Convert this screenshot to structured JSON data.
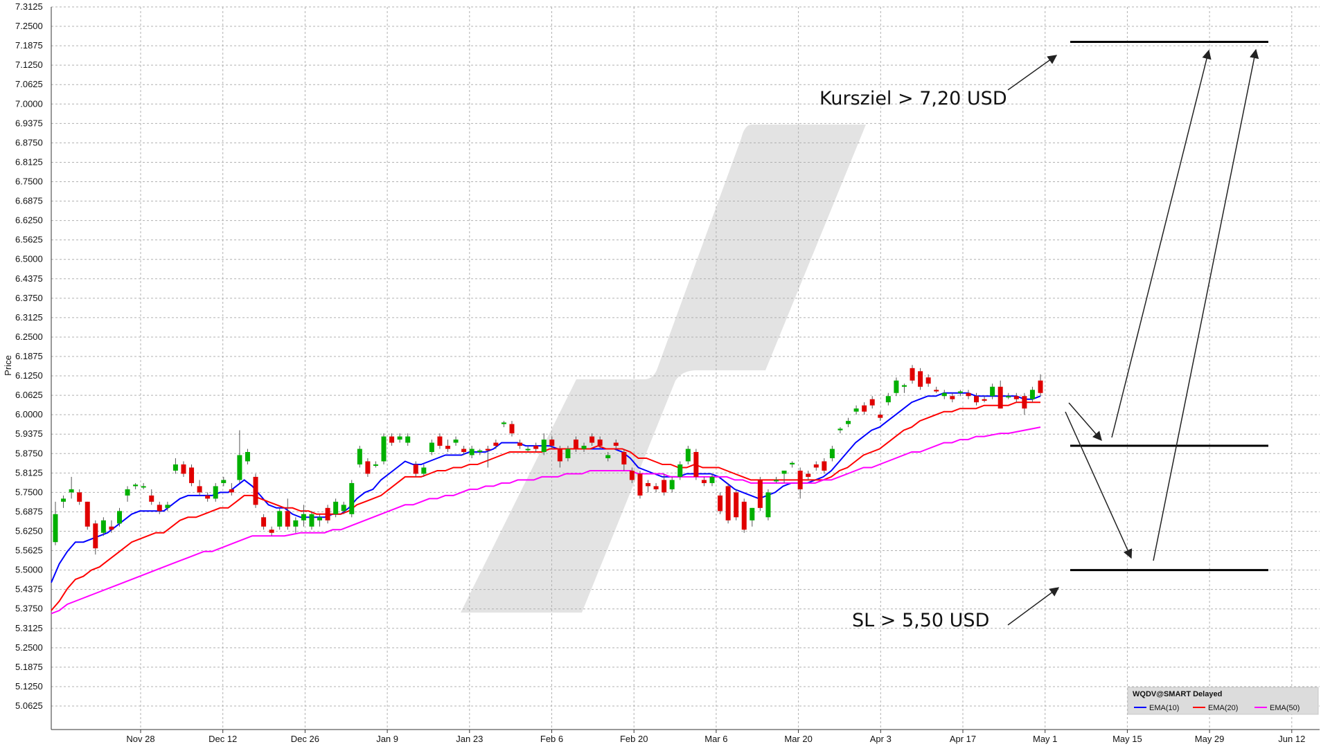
{
  "chart_data": {
    "type": "candlestick",
    "ylabel": "Price",
    "xlabel": "",
    "ylim": [
      5.0,
      7.3125
    ],
    "y_ticks": [
      "5.0625",
      "5.1250",
      "5.1875",
      "5.2500",
      "5.3125",
      "5.3750",
      "5.4375",
      "5.5000",
      "5.5625",
      "5.6250",
      "5.6875",
      "5.7500",
      "5.8125",
      "5.8750",
      "5.9375",
      "6.0000",
      "6.0625",
      "6.1250",
      "6.1875",
      "6.2500",
      "6.3125",
      "6.3750",
      "6.4375",
      "6.5000",
      "6.5625",
      "6.6250",
      "6.6875",
      "6.7500",
      "6.8125",
      "6.8750",
      "6.9375",
      "7.0000",
      "7.0625",
      "7.1250",
      "7.1875",
      "7.2500",
      "7.3125"
    ],
    "x_ticks": [
      "Nov 28",
      "Dec 12",
      "Dec 26",
      "Jan 9",
      "Jan 23",
      "Feb 6",
      "Feb 20",
      "Mar 6",
      "Mar 20",
      "Apr 3",
      "Apr 17",
      "May 1",
      "May 15",
      "May 29",
      "Jun 12"
    ],
    "candles": [
      {
        "o": 5.59,
        "h": 5.72,
        "l": 5.58,
        "c": 5.68
      },
      {
        "o": 5.72,
        "h": 5.74,
        "l": 5.7,
        "c": 5.73
      },
      {
        "o": 5.75,
        "h": 5.8,
        "l": 5.73,
        "c": 5.76
      },
      {
        "o": 5.75,
        "h": 5.76,
        "l": 5.71,
        "c": 5.72
      },
      {
        "o": 5.72,
        "h": 5.72,
        "l": 5.63,
        "c": 5.64
      },
      {
        "o": 5.65,
        "h": 5.66,
        "l": 5.55,
        "c": 5.57
      },
      {
        "o": 5.62,
        "h": 5.67,
        "l": 5.61,
        "c": 5.66
      },
      {
        "o": 5.64,
        "h": 5.66,
        "l": 5.62,
        "c": 5.63
      },
      {
        "o": 5.65,
        "h": 5.7,
        "l": 5.64,
        "c": 5.69
      },
      {
        "o": 5.74,
        "h": 5.77,
        "l": 5.72,
        "c": 5.76
      },
      {
        "o": 5.77,
        "h": 5.78,
        "l": 5.76,
        "c": 5.775
      },
      {
        "o": 5.77,
        "h": 5.78,
        "l": 5.76,
        "c": 5.77
      },
      {
        "o": 5.74,
        "h": 5.76,
        "l": 5.71,
        "c": 5.72
      },
      {
        "o": 5.71,
        "h": 5.72,
        "l": 5.68,
        "c": 5.69
      },
      {
        "o": 5.7,
        "h": 5.72,
        "l": 5.69,
        "c": 5.71
      },
      {
        "o": 5.82,
        "h": 5.86,
        "l": 5.81,
        "c": 5.84
      },
      {
        "o": 5.84,
        "h": 5.85,
        "l": 5.8,
        "c": 5.81
      },
      {
        "o": 5.83,
        "h": 5.84,
        "l": 5.77,
        "c": 5.78
      },
      {
        "o": 5.77,
        "h": 5.79,
        "l": 5.74,
        "c": 5.75
      },
      {
        "o": 5.74,
        "h": 5.75,
        "l": 5.72,
        "c": 5.73
      },
      {
        "o": 5.73,
        "h": 5.78,
        "l": 5.72,
        "c": 5.77
      },
      {
        "o": 5.78,
        "h": 5.8,
        "l": 5.77,
        "c": 5.79
      },
      {
        "o": 5.76,
        "h": 5.78,
        "l": 5.74,
        "c": 5.75
      },
      {
        "o": 5.79,
        "h": 5.95,
        "l": 5.78,
        "c": 5.87
      },
      {
        "o": 5.85,
        "h": 5.89,
        "l": 5.84,
        "c": 5.88
      },
      {
        "o": 5.8,
        "h": 5.81,
        "l": 5.7,
        "c": 5.71
      },
      {
        "o": 5.67,
        "h": 5.68,
        "l": 5.63,
        "c": 5.64
      },
      {
        "o": 5.63,
        "h": 5.64,
        "l": 5.61,
        "c": 5.62
      },
      {
        "o": 5.64,
        "h": 5.7,
        "l": 5.63,
        "c": 5.69
      },
      {
        "o": 5.69,
        "h": 5.73,
        "l": 5.63,
        "c": 5.64
      },
      {
        "o": 5.64,
        "h": 5.67,
        "l": 5.62,
        "c": 5.66
      },
      {
        "o": 5.66,
        "h": 5.71,
        "l": 5.64,
        "c": 5.68
      },
      {
        "o": 5.64,
        "h": 5.69,
        "l": 5.63,
        "c": 5.68
      },
      {
        "o": 5.66,
        "h": 5.68,
        "l": 5.64,
        "c": 5.67
      },
      {
        "o": 5.7,
        "h": 5.71,
        "l": 5.65,
        "c": 5.66
      },
      {
        "o": 5.68,
        "h": 5.73,
        "l": 5.67,
        "c": 5.72
      },
      {
        "o": 5.69,
        "h": 5.72,
        "l": 5.68,
        "c": 5.71
      },
      {
        "o": 5.68,
        "h": 5.79,
        "l": 5.67,
        "c": 5.78
      },
      {
        "o": 5.84,
        "h": 5.9,
        "l": 5.83,
        "c": 5.89
      },
      {
        "o": 5.85,
        "h": 5.86,
        "l": 5.8,
        "c": 5.81
      },
      {
        "o": 5.84,
        "h": 5.85,
        "l": 5.83,
        "c": 5.84
      },
      {
        "o": 5.85,
        "h": 5.94,
        "l": 5.84,
        "c": 5.93
      },
      {
        "o": 5.93,
        "h": 5.94,
        "l": 5.9,
        "c": 5.91
      },
      {
        "o": 5.92,
        "h": 5.94,
        "l": 5.91,
        "c": 5.93
      },
      {
        "o": 5.91,
        "h": 5.94,
        "l": 5.9,
        "c": 5.93
      },
      {
        "o": 5.84,
        "h": 5.85,
        "l": 5.8,
        "c": 5.81
      },
      {
        "o": 5.81,
        "h": 5.84,
        "l": 5.8,
        "c": 5.83
      },
      {
        "o": 5.88,
        "h": 5.92,
        "l": 5.87,
        "c": 5.91
      },
      {
        "o": 5.93,
        "h": 5.94,
        "l": 5.89,
        "c": 5.9
      },
      {
        "o": 5.9,
        "h": 5.92,
        "l": 5.88,
        "c": 5.89
      },
      {
        "o": 5.91,
        "h": 5.93,
        "l": 5.9,
        "c": 5.92
      },
      {
        "o": 5.89,
        "h": 5.9,
        "l": 5.87,
        "c": 5.88
      },
      {
        "o": 5.87,
        "h": 5.9,
        "l": 5.86,
        "c": 5.89
      },
      {
        "o": 5.88,
        "h": 5.89,
        "l": 5.87,
        "c": 5.885
      },
      {
        "o": 5.89,
        "h": 5.9,
        "l": 5.83,
        "c": 5.885
      },
      {
        "o": 5.91,
        "h": 5.92,
        "l": 5.89,
        "c": 5.9
      },
      {
        "o": 5.97,
        "h": 5.98,
        "l": 5.96,
        "c": 5.975
      },
      {
        "o": 5.97,
        "h": 5.98,
        "l": 5.93,
        "c": 5.94
      },
      {
        "o": 5.91,
        "h": 5.92,
        "l": 5.89,
        "c": 5.9
      },
      {
        "o": 5.89,
        "h": 5.9,
        "l": 5.88,
        "c": 5.89
      },
      {
        "o": 5.9,
        "h": 5.91,
        "l": 5.88,
        "c": 5.89
      },
      {
        "o": 5.88,
        "h": 5.94,
        "l": 5.87,
        "c": 5.92
      },
      {
        "o": 5.92,
        "h": 5.93,
        "l": 5.89,
        "c": 5.9
      },
      {
        "o": 5.89,
        "h": 5.9,
        "l": 5.83,
        "c": 5.85
      },
      {
        "o": 5.86,
        "h": 5.9,
        "l": 5.85,
        "c": 5.89
      },
      {
        "o": 5.92,
        "h": 5.93,
        "l": 5.88,
        "c": 5.89
      },
      {
        "o": 5.89,
        "h": 5.91,
        "l": 5.88,
        "c": 5.9
      },
      {
        "o": 5.93,
        "h": 5.94,
        "l": 5.9,
        "c": 5.91
      },
      {
        "o": 5.92,
        "h": 5.93,
        "l": 5.89,
        "c": 5.9
      },
      {
        "o": 5.86,
        "h": 5.88,
        "l": 5.85,
        "c": 5.87
      },
      {
        "o": 5.91,
        "h": 5.92,
        "l": 5.89,
        "c": 5.9
      },
      {
        "o": 5.88,
        "h": 5.89,
        "l": 5.82,
        "c": 5.84
      },
      {
        "o": 5.82,
        "h": 5.83,
        "l": 5.78,
        "c": 5.79
      },
      {
        "o": 5.81,
        "h": 5.82,
        "l": 5.73,
        "c": 5.74
      },
      {
        "o": 5.78,
        "h": 5.79,
        "l": 5.75,
        "c": 5.77
      },
      {
        "o": 5.77,
        "h": 5.78,
        "l": 5.75,
        "c": 5.76
      },
      {
        "o": 5.79,
        "h": 5.81,
        "l": 5.74,
        "c": 5.75
      },
      {
        "o": 5.76,
        "h": 5.8,
        "l": 5.75,
        "c": 5.79
      },
      {
        "o": 5.8,
        "h": 5.85,
        "l": 5.79,
        "c": 5.84
      },
      {
        "o": 5.85,
        "h": 5.9,
        "l": 5.84,
        "c": 5.89
      },
      {
        "o": 5.88,
        "h": 5.89,
        "l": 5.79,
        "c": 5.8
      },
      {
        "o": 5.79,
        "h": 5.8,
        "l": 5.77,
        "c": 5.78
      },
      {
        "o": 5.78,
        "h": 5.81,
        "l": 5.77,
        "c": 5.8
      },
      {
        "o": 5.74,
        "h": 5.75,
        "l": 5.68,
        "c": 5.69
      },
      {
        "o": 5.77,
        "h": 5.78,
        "l": 5.65,
        "c": 5.66
      },
      {
        "o": 5.75,
        "h": 5.76,
        "l": 5.66,
        "c": 5.67
      },
      {
        "o": 5.72,
        "h": 5.73,
        "l": 5.62,
        "c": 5.63
      },
      {
        "o": 5.66,
        "h": 5.7,
        "l": 5.64,
        "c": 5.7
      },
      {
        "o": 5.79,
        "h": 5.8,
        "l": 5.69,
        "c": 5.7
      },
      {
        "o": 5.67,
        "h": 5.76,
        "l": 5.66,
        "c": 5.75
      },
      {
        "o": 5.79,
        "h": 5.8,
        "l": 5.78,
        "c": 5.79
      },
      {
        "o": 5.81,
        "h": 5.82,
        "l": 5.78,
        "c": 5.82
      },
      {
        "o": 5.84,
        "h": 5.85,
        "l": 5.83,
        "c": 5.845
      },
      {
        "o": 5.82,
        "h": 5.83,
        "l": 5.73,
        "c": 5.76
      },
      {
        "o": 5.81,
        "h": 5.82,
        "l": 5.79,
        "c": 5.8
      },
      {
        "o": 5.84,
        "h": 5.85,
        "l": 5.82,
        "c": 5.83
      },
      {
        "o": 5.85,
        "h": 5.86,
        "l": 5.81,
        "c": 5.82
      },
      {
        "o": 5.86,
        "h": 5.9,
        "l": 5.85,
        "c": 5.89
      },
      {
        "o": 5.95,
        "h": 5.96,
        "l": 5.94,
        "c": 5.955
      },
      {
        "o": 5.97,
        "h": 5.99,
        "l": 5.96,
        "c": 5.98
      },
      {
        "o": 6.01,
        "h": 6.03,
        "l": 6.0,
        "c": 6.02
      },
      {
        "o": 6.03,
        "h": 6.04,
        "l": 6.0,
        "c": 6.01
      },
      {
        "o": 6.05,
        "h": 6.06,
        "l": 6.02,
        "c": 6.03
      },
      {
        "o": 6.0,
        "h": 6.01,
        "l": 5.98,
        "c": 5.99
      },
      {
        "o": 6.04,
        "h": 6.07,
        "l": 6.03,
        "c": 6.06
      },
      {
        "o": 6.07,
        "h": 6.12,
        "l": 6.06,
        "c": 6.11
      },
      {
        "o": 6.09,
        "h": 6.1,
        "l": 6.07,
        "c": 6.095
      },
      {
        "o": 6.15,
        "h": 6.16,
        "l": 6.1,
        "c": 6.11
      },
      {
        "o": 6.14,
        "h": 6.15,
        "l": 6.08,
        "c": 6.09
      },
      {
        "o": 6.12,
        "h": 6.13,
        "l": 6.09,
        "c": 6.1
      },
      {
        "o": 6.08,
        "h": 6.09,
        "l": 6.07,
        "c": 6.075
      },
      {
        "o": 6.06,
        "h": 6.08,
        "l": 6.05,
        "c": 6.07
      },
      {
        "o": 6.06,
        "h": 6.07,
        "l": 6.04,
        "c": 6.05
      },
      {
        "o": 6.07,
        "h": 6.08,
        "l": 6.06,
        "c": 6.075
      },
      {
        "o": 6.07,
        "h": 6.08,
        "l": 6.05,
        "c": 6.06
      },
      {
        "o": 6.06,
        "h": 6.07,
        "l": 6.03,
        "c": 6.04
      },
      {
        "o": 6.05,
        "h": 6.06,
        "l": 6.04,
        "c": 6.045
      },
      {
        "o": 6.06,
        "h": 6.1,
        "l": 6.05,
        "c": 6.09
      },
      {
        "o": 6.09,
        "h": 6.11,
        "l": 6.02,
        "c": 6.02
      },
      {
        "o": 6.06,
        "h": 6.07,
        "l": 6.05,
        "c": 6.06
      },
      {
        "o": 6.06,
        "h": 6.07,
        "l": 6.04,
        "c": 6.05
      },
      {
        "o": 6.06,
        "h": 6.07,
        "l": 6.0,
        "c": 6.02
      },
      {
        "o": 6.05,
        "h": 6.09,
        "l": 6.04,
        "c": 6.08
      },
      {
        "o": 6.11,
        "h": 6.13,
        "l": 6.06,
        "c": 6.07
      }
    ],
    "series": [
      {
        "name": "EMA(10)",
        "color": "#0000ff",
        "values": [
          5.46,
          5.52,
          5.56,
          5.59,
          5.59,
          5.6,
          5.61,
          5.62,
          5.64,
          5.66,
          5.68,
          5.69,
          5.69,
          5.69,
          5.69,
          5.71,
          5.73,
          5.74,
          5.74,
          5.74,
          5.74,
          5.75,
          5.75,
          5.77,
          5.79,
          5.77,
          5.74,
          5.71,
          5.7,
          5.7,
          5.68,
          5.67,
          5.67,
          5.67,
          5.67,
          5.68,
          5.68,
          5.7,
          5.73,
          5.75,
          5.76,
          5.79,
          5.81,
          5.83,
          5.85,
          5.84,
          5.84,
          5.85,
          5.86,
          5.87,
          5.87,
          5.87,
          5.88,
          5.88,
          5.88,
          5.89,
          5.91,
          5.91,
          5.91,
          5.9,
          5.9,
          5.9,
          5.9,
          5.89,
          5.89,
          5.89,
          5.89,
          5.89,
          5.89,
          5.89,
          5.89,
          5.88,
          5.86,
          5.83,
          5.82,
          5.81,
          5.8,
          5.8,
          5.8,
          5.81,
          5.81,
          5.81,
          5.81,
          5.8,
          5.78,
          5.76,
          5.75,
          5.74,
          5.73,
          5.74,
          5.75,
          5.77,
          5.78,
          5.78,
          5.78,
          5.79,
          5.8,
          5.82,
          5.85,
          5.88,
          5.91,
          5.93,
          5.95,
          5.96,
          5.98,
          6.0,
          6.02,
          6.04,
          6.05,
          6.06,
          6.06,
          6.07,
          6.07,
          6.07,
          6.07,
          6.06,
          6.06,
          6.06,
          6.06,
          6.06,
          6.06,
          6.05,
          6.05,
          6.06
        ]
      },
      {
        "name": "EMA(20)",
        "color": "#ff0000",
        "values": [
          5.37,
          5.4,
          5.44,
          5.47,
          5.48,
          5.5,
          5.51,
          5.53,
          5.55,
          5.57,
          5.59,
          5.6,
          5.61,
          5.62,
          5.62,
          5.64,
          5.66,
          5.67,
          5.67,
          5.68,
          5.69,
          5.7,
          5.7,
          5.72,
          5.74,
          5.74,
          5.73,
          5.72,
          5.71,
          5.7,
          5.7,
          5.69,
          5.69,
          5.68,
          5.68,
          5.68,
          5.68,
          5.69,
          5.71,
          5.72,
          5.73,
          5.74,
          5.76,
          5.78,
          5.8,
          5.8,
          5.8,
          5.81,
          5.82,
          5.82,
          5.83,
          5.83,
          5.84,
          5.84,
          5.85,
          5.86,
          5.87,
          5.88,
          5.88,
          5.88,
          5.88,
          5.88,
          5.89,
          5.89,
          5.89,
          5.89,
          5.89,
          5.89,
          5.9,
          5.89,
          5.89,
          5.89,
          5.88,
          5.86,
          5.86,
          5.85,
          5.84,
          5.84,
          5.83,
          5.83,
          5.84,
          5.83,
          5.83,
          5.83,
          5.82,
          5.81,
          5.8,
          5.79,
          5.79,
          5.79,
          5.79,
          5.79,
          5.79,
          5.79,
          5.79,
          5.79,
          5.79,
          5.8,
          5.82,
          5.83,
          5.85,
          5.87,
          5.88,
          5.89,
          5.91,
          5.93,
          5.95,
          5.96,
          5.98,
          5.99,
          6.0,
          6.01,
          6.01,
          6.02,
          6.02,
          6.02,
          6.03,
          6.03,
          6.03,
          6.03,
          6.04,
          6.04,
          6.04,
          6.04
        ]
      },
      {
        "name": "EMA(50)",
        "color": "#ff00ff",
        "values": [
          5.36,
          5.37,
          5.39,
          5.4,
          5.41,
          5.42,
          5.43,
          5.44,
          5.45,
          5.46,
          5.47,
          5.48,
          5.49,
          5.5,
          5.51,
          5.52,
          5.53,
          5.54,
          5.55,
          5.56,
          5.56,
          5.57,
          5.58,
          5.59,
          5.6,
          5.61,
          5.61,
          5.61,
          5.61,
          5.61,
          5.615,
          5.62,
          5.62,
          5.62,
          5.62,
          5.63,
          5.63,
          5.64,
          5.65,
          5.66,
          5.67,
          5.68,
          5.69,
          5.7,
          5.71,
          5.71,
          5.72,
          5.73,
          5.73,
          5.74,
          5.74,
          5.75,
          5.76,
          5.76,
          5.77,
          5.77,
          5.78,
          5.78,
          5.79,
          5.79,
          5.79,
          5.8,
          5.8,
          5.8,
          5.81,
          5.81,
          5.81,
          5.82,
          5.82,
          5.82,
          5.82,
          5.82,
          5.82,
          5.81,
          5.81,
          5.81,
          5.81,
          5.8,
          5.8,
          5.8,
          5.8,
          5.8,
          5.8,
          5.8,
          5.8,
          5.79,
          5.79,
          5.78,
          5.78,
          5.78,
          5.78,
          5.78,
          5.78,
          5.78,
          5.78,
          5.78,
          5.79,
          5.79,
          5.8,
          5.81,
          5.82,
          5.83,
          5.83,
          5.84,
          5.85,
          5.86,
          5.87,
          5.88,
          5.88,
          5.89,
          5.9,
          5.91,
          5.91,
          5.92,
          5.92,
          5.93,
          5.93,
          5.935,
          5.94,
          5.94,
          5.945,
          5.95,
          5.955,
          5.96
        ]
      }
    ],
    "levels": [
      {
        "label": "Kursziel > 7,20 USD",
        "value": 7.2
      },
      {
        "label": "",
        "value": 5.9
      },
      {
        "label": "SL > 5,50 USD",
        "value": 5.5
      }
    ],
    "legend": {
      "title": "WQDV@SMART Delayed",
      "items": [
        "EMA(10)",
        "EMA(20)",
        "EMA(50)"
      ],
      "placement": "bottom-right"
    },
    "grid": true,
    "colors": {
      "up": "#00b000",
      "down": "#e00000",
      "grid": "#b0b0b0"
    }
  }
}
